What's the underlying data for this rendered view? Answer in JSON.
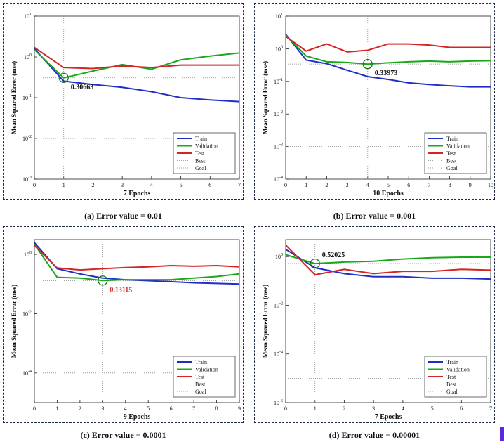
{
  "colors": {
    "train": "#1f2ec7",
    "validation": "#1aa81a",
    "test": "#d42424",
    "annot_red": "#d42424",
    "circle": "#1a7a1a"
  },
  "chart_data": [
    {
      "type": "line",
      "caption": "(a) Error value = 0.01",
      "xlabel": "7 Epochs",
      "ylabel": "Mean Squared Error  (mse)",
      "xlim": [
        0,
        7
      ],
      "xticks": [
        "0",
        "1",
        "2",
        "3",
        "4",
        "5",
        "6",
        "7"
      ],
      "ylog": true,
      "ylim_exp": [
        -3,
        1
      ],
      "yticks": [
        {
          "e": 1,
          "label": "10^1"
        },
        {
          "e": 0,
          "label": "10^0"
        },
        {
          "e": -1,
          "label": "10^-1"
        },
        {
          "e": -2,
          "label": "10^-2"
        },
        {
          "e": -3,
          "label": "10^-3"
        }
      ],
      "series": [
        {
          "name": "Train",
          "x": [
            0,
            1,
            2,
            3,
            4,
            5,
            6,
            7
          ],
          "y": [
            1.6,
            0.255,
            0.21,
            0.18,
            0.14,
            0.1,
            0.088,
            0.08
          ]
        },
        {
          "name": "Validation",
          "x": [
            0,
            1,
            2,
            3,
            4,
            5,
            6,
            7
          ],
          "y": [
            1.5,
            0.30663,
            0.45,
            0.65,
            0.5,
            0.85,
            1.05,
            1.25
          ]
        },
        {
          "name": "Test",
          "x": [
            0,
            1,
            2,
            3,
            4,
            5,
            6,
            7
          ],
          "y": [
            1.7,
            0.55,
            0.52,
            0.6,
            0.55,
            0.63,
            0.63,
            0.63
          ]
        }
      ],
      "best_x": 1,
      "best_y": 0.30663,
      "goal_y": 0.01,
      "annotation": {
        "text": "0.30663",
        "color": "#111111"
      },
      "legend": [
        "Train",
        "Validation",
        "Test",
        "Best",
        "Goal"
      ],
      "legend_position": "bottom-right"
    },
    {
      "type": "line",
      "caption": "(b) Error value = 0.001",
      "xlabel": "10 Epochs",
      "ylabel": "Mean Squared Error  (mse)",
      "xlim": [
        0,
        10
      ],
      "xticks": [
        "0",
        "1",
        "2",
        "3",
        "4",
        "5",
        "6",
        "7",
        "8",
        "9",
        "10"
      ],
      "ylog": true,
      "ylim_exp": [
        -4,
        1
      ],
      "yticks": [
        {
          "e": 1,
          "label": "10^1"
        },
        {
          "e": 0,
          "label": "10^0"
        },
        {
          "e": -1,
          "label": "10^-1"
        },
        {
          "e": -2,
          "label": "10^-2"
        },
        {
          "e": -3,
          "label": "10^-3"
        },
        {
          "e": -4,
          "label": "10^-4"
        }
      ],
      "series": [
        {
          "name": "Train",
          "x": [
            0,
            1,
            2,
            3,
            4,
            5,
            6,
            7,
            8,
            9,
            10
          ],
          "y": [
            2.8,
            0.45,
            0.35,
            0.22,
            0.14,
            0.115,
            0.09,
            0.08,
            0.073,
            0.068,
            0.068
          ]
        },
        {
          "name": "Validation",
          "x": [
            0,
            1,
            2,
            3,
            4,
            5,
            6,
            7,
            8,
            9,
            10
          ],
          "y": [
            2.6,
            0.6,
            0.4,
            0.38,
            0.33973,
            0.37,
            0.4,
            0.42,
            0.4,
            0.42,
            0.43
          ]
        },
        {
          "name": "Test",
          "x": [
            0,
            1,
            2,
            3,
            4,
            5,
            6,
            7,
            8,
            9,
            10
          ],
          "y": [
            2.4,
            0.85,
            1.4,
            0.8,
            0.9,
            1.4,
            1.4,
            1.3,
            1.1,
            1.1,
            1.1
          ]
        }
      ],
      "best_x": 4,
      "best_y": 0.33973,
      "goal_y": 0.001,
      "annotation": {
        "text": "0.33973",
        "color": "#111111"
      },
      "legend": [
        "Train",
        "Validation",
        "Test",
        "Best",
        "Goal"
      ],
      "legend_position": "bottom-right"
    },
    {
      "type": "line",
      "caption": "(c) Error value = 0.0001",
      "xlabel": "9 Epochs",
      "ylabel": "Mean Squared Error  (mse)",
      "xlim": [
        0,
        9
      ],
      "xticks": [
        "0",
        "1",
        "2",
        "3",
        "4",
        "5",
        "6",
        "7",
        "8",
        "9"
      ],
      "ylog": true,
      "ylim_exp": [
        -5,
        0.5
      ],
      "yticks": [
        {
          "e": 0,
          "label": "10^0"
        },
        {
          "e": -2,
          "label": "10^-2"
        },
        {
          "e": -4,
          "label": "10^-4"
        }
      ],
      "series": [
        {
          "name": "Train",
          "x": [
            0,
            1,
            2,
            3,
            4,
            5,
            6,
            7,
            8,
            9
          ],
          "y": [
            2.5,
            0.33,
            0.22,
            0.16,
            0.14,
            0.13,
            0.12,
            0.11,
            0.105,
            0.1
          ]
        },
        {
          "name": "Validation",
          "x": [
            0,
            1,
            2,
            3,
            4,
            5,
            6,
            7,
            8,
            9
          ],
          "y": [
            2.2,
            0.17,
            0.16,
            0.13115,
            0.14,
            0.14,
            0.14,
            0.16,
            0.18,
            0.22
          ]
        },
        {
          "name": "Test",
          "x": [
            0,
            1,
            2,
            3,
            4,
            5,
            6,
            7,
            8,
            9
          ],
          "y": [
            2.0,
            0.35,
            0.3,
            0.33,
            0.36,
            0.38,
            0.42,
            0.4,
            0.42,
            0.38
          ]
        }
      ],
      "best_x": 3,
      "best_y": 0.13115,
      "goal_y": 0.0001,
      "annotation": {
        "text": "0.13115",
        "color": "#d42424"
      },
      "legend": [
        "Train",
        "Validation",
        "Test",
        "Best",
        "Goal"
      ],
      "legend_position": "bottom-right"
    },
    {
      "type": "line",
      "caption": "(d) Error value = 0.00001",
      "xlabel": "7 Epochs",
      "ylabel": "Mean Squared Error  (mse)",
      "xlim": [
        0,
        7
      ],
      "xticks": [
        "0",
        "1",
        "2",
        "3",
        "4",
        "5",
        "6",
        "7"
      ],
      "ylog": true,
      "ylim_exp": [
        -6,
        0.7
      ],
      "yticks": [
        {
          "e": 0,
          "label": "10^0"
        },
        {
          "e": -2,
          "label": "10^-2"
        },
        {
          "e": -4,
          "label": "10^-4"
        },
        {
          "e": -6,
          "label": "10^-6"
        }
      ],
      "series": [
        {
          "name": "Train",
          "x": [
            0,
            1,
            2,
            3,
            4,
            5,
            6,
            7
          ],
          "y": [
            2.0,
            0.35,
            0.2,
            0.15,
            0.15,
            0.13,
            0.13,
            0.12
          ]
        },
        {
          "name": "Validation",
          "x": [
            0,
            1,
            2,
            3,
            4,
            5,
            6,
            7
          ],
          "y": [
            1.2,
            0.52025,
            0.6,
            0.65,
            0.8,
            0.9,
            0.95,
            0.95
          ]
        },
        {
          "name": "Test",
          "x": [
            0,
            1,
            2,
            3,
            4,
            5,
            6,
            7
          ],
          "y": [
            3.0,
            0.18,
            0.3,
            0.2,
            0.25,
            0.25,
            0.3,
            0.28
          ]
        }
      ],
      "best_x": 1,
      "best_y": 0.52025,
      "goal_y": 1e-05,
      "annotation": {
        "text": "0.52025",
        "color": "#111111"
      },
      "legend": [
        "Train",
        "Validation",
        "Test",
        "Best",
        "Goal"
      ],
      "legend_position": "bottom-right"
    }
  ]
}
